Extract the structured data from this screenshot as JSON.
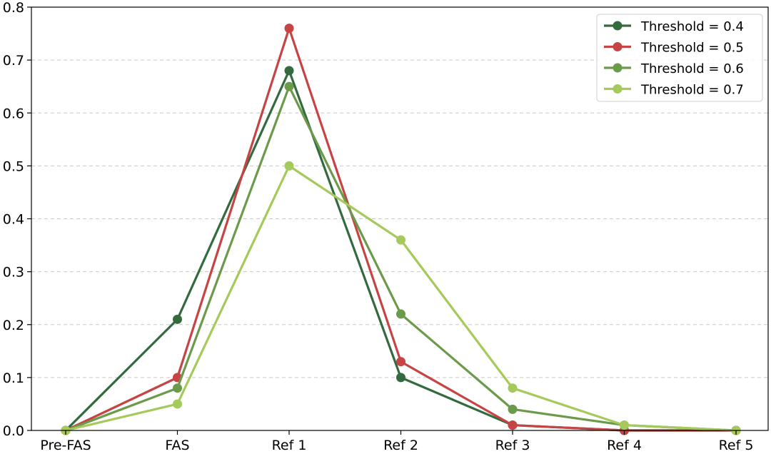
{
  "chart_data": {
    "type": "line",
    "title": "",
    "xlabel": "",
    "ylabel": "",
    "categories": [
      "Pre-FAS",
      "FAS",
      "Ref 1",
      "Ref 2",
      "Ref 3",
      "Ref 4",
      "Ref 5"
    ],
    "ylim": [
      0,
      0.8
    ],
    "yticks": [
      "0.0",
      "0.1",
      "0.2",
      "0.3",
      "0.4",
      "0.5",
      "0.6",
      "0.7",
      "0.8"
    ],
    "grid": "horizontal dashed",
    "legend_position": "top-right",
    "series": [
      {
        "name": "Threshold = 0.4",
        "color": "#336b3f",
        "values": [
          0.0,
          0.21,
          0.68,
          0.1,
          0.01,
          0.0,
          0.0
        ]
      },
      {
        "name": "Threshold = 0.5",
        "color": "#c64444",
        "values": [
          0.0,
          0.1,
          0.76,
          0.13,
          0.01,
          0.0,
          0.0
        ]
      },
      {
        "name": "Threshold = 0.6",
        "color": "#6b9a4a",
        "values": [
          0.0,
          0.08,
          0.65,
          0.22,
          0.04,
          0.01,
          0.0
        ]
      },
      {
        "name": "Threshold = 0.7",
        "color": "#a5c95a",
        "values": [
          0.0,
          0.05,
          0.5,
          0.36,
          0.08,
          0.01,
          0.0
        ]
      }
    ]
  }
}
